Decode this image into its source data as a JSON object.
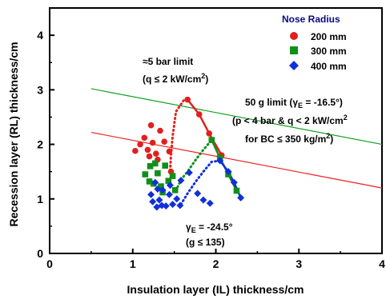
{
  "chart_data": {
    "type": "scatter",
    "xlabel": "Insulation layer (IL) thickness/cm",
    "ylabel": "Recession layer (RL) thickness/cm",
    "xlim": [
      0,
      4
    ],
    "ylim": [
      0,
      4.5
    ],
    "x_ticks": [
      "0",
      "1",
      "2",
      "3",
      "4"
    ],
    "y_ticks": [
      "0",
      "1",
      "2",
      "3",
      "4"
    ],
    "grid": false,
    "legend": {
      "title": "Nose Radius",
      "position": "top-right"
    },
    "colors": {
      "200": "#e0201c",
      "300": "#109018",
      "400": "#1030d8",
      "line_50g": "#10a020",
      "line_red": "#f02020"
    },
    "series": [
      {
        "name": "200 mm",
        "marker": "circle",
        "points": [
          [
            1.03,
            1.88
          ],
          [
            1.09,
            2.0
          ],
          [
            1.14,
            2.12
          ],
          [
            1.18,
            1.9
          ],
          [
            1.22,
            2.35
          ],
          [
            1.24,
            2.03
          ],
          [
            1.28,
            1.83
          ],
          [
            1.33,
            2.25
          ],
          [
            1.38,
            2.05
          ],
          [
            1.44,
            1.87
          ],
          [
            1.46,
            1.5
          ],
          [
            1.3,
            1.72
          ],
          [
            1.2,
            1.78
          ]
        ],
        "curve": [
          [
            1.45,
            1.52
          ],
          [
            1.46,
            1.8
          ],
          [
            1.48,
            2.15
          ],
          [
            1.52,
            2.6
          ],
          [
            1.62,
            2.82
          ],
          [
            1.66,
            2.82
          ]
        ],
        "line": [
          [
            1.66,
            2.82
          ],
          [
            1.8,
            2.55
          ],
          [
            1.92,
            2.2
          ],
          [
            2.07,
            1.8
          ]
        ]
      },
      {
        "name": "300 mm",
        "marker": "square",
        "points": [
          [
            1.15,
            1.45
          ],
          [
            1.21,
            1.6
          ],
          [
            1.25,
            1.28
          ],
          [
            1.3,
            1.47
          ],
          [
            1.34,
            1.23
          ],
          [
            1.39,
            1.61
          ],
          [
            1.43,
            1.33
          ],
          [
            1.48,
            1.42
          ],
          [
            1.51,
            1.16
          ],
          [
            1.2,
            1.32
          ],
          [
            1.27,
            1.65
          ],
          [
            1.36,
            1.12
          ]
        ],
        "curve": [
          [
            1.52,
            1.15
          ],
          [
            1.58,
            1.35
          ],
          [
            1.66,
            1.5
          ],
          [
            1.75,
            1.7
          ],
          [
            1.85,
            1.9
          ],
          [
            1.95,
            2.08
          ]
        ],
        "line": [
          [
            1.95,
            2.08
          ],
          [
            2.05,
            1.75
          ],
          [
            2.15,
            1.45
          ],
          [
            2.25,
            1.15
          ]
        ]
      },
      {
        "name": "400 mm",
        "marker": "diamond",
        "points": [
          [
            1.22,
            1.08
          ],
          [
            1.27,
            1.3
          ],
          [
            1.32,
            0.98
          ],
          [
            1.36,
            1.16
          ],
          [
            1.4,
            0.87
          ],
          [
            1.44,
            1.08
          ],
          [
            1.48,
            0.9
          ],
          [
            1.53,
            1.0
          ],
          [
            1.57,
            0.88
          ],
          [
            1.24,
            0.95
          ],
          [
            1.3,
            1.18
          ],
          [
            1.35,
            0.88
          ],
          [
            1.58,
            1.34
          ],
          [
            1.68,
            1.48
          ],
          [
            1.78,
            1.1
          ],
          [
            1.85,
            0.98
          ],
          [
            1.93,
            0.92
          ],
          [
            1.29,
            0.85
          ],
          [
            1.45,
            1.25
          ]
        ],
        "curve": [
          [
            1.58,
            0.9
          ],
          [
            1.66,
            1.1
          ],
          [
            1.75,
            1.3
          ],
          [
            1.85,
            1.5
          ],
          [
            1.95,
            1.68
          ],
          [
            2.05,
            1.7
          ]
        ],
        "line": [
          [
            2.05,
            1.7
          ],
          [
            2.15,
            1.5
          ],
          [
            2.22,
            1.3
          ],
          [
            2.3,
            1.02
          ]
        ]
      }
    ],
    "limit_lines": [
      {
        "name": "50 g limit",
        "color": "green",
        "points": [
          [
            0.5,
            3.02
          ],
          [
            4.0,
            2.0
          ]
        ]
      },
      {
        "name": "q limit",
        "color": "red",
        "points": [
          [
            0.5,
            2.22
          ],
          [
            4.0,
            1.2
          ]
        ]
      }
    ],
    "annotations": [
      {
        "id": "bar",
        "lines": [
          "≈5 bar limit",
          "(q ≤ 2 kW/cm²)"
        ]
      },
      {
        "id": "g50",
        "lines": [
          "50 g limit (γE = -16.5°)",
          "(p < 4 bar  & q < 2 kW/cm²",
          "for BC ≤ 350 kg/m²)"
        ]
      },
      {
        "id": "gamma",
        "lines": [
          "γE = -24.5°",
          "(g ≤ 135)"
        ]
      }
    ]
  }
}
